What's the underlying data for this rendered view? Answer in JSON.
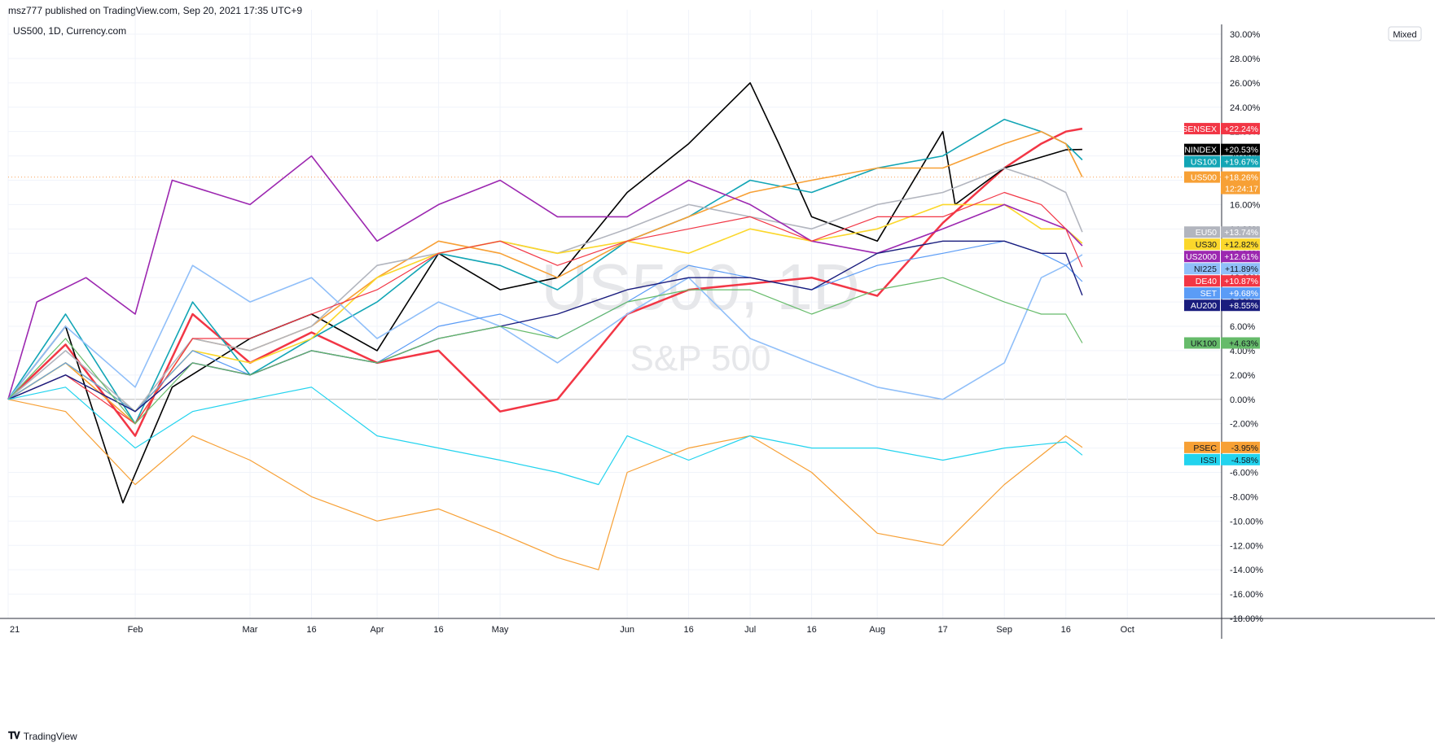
{
  "header": {
    "published": "msz777 published on TradingView.com, Sep 20, 2021 17:35 UTC+9",
    "symbol": "US500, 1D, Currency.com"
  },
  "watermark": {
    "symbol": "US500, 1D",
    "name": "S&P 500"
  },
  "scale_mode": "Mixed",
  "footer": {
    "brand": "TradingView",
    "logo": "tradingview-logo-icon"
  },
  "colors": {
    "grid": "#f0f3fa",
    "zero_line": "#bbbbbb",
    "axis_text": "#131722",
    "current_price_line": "#f7a35c"
  },
  "chart_data": {
    "type": "line",
    "unit": "%",
    "y_axis_ticks": [
      "30.00%",
      "28.00%",
      "26.00%",
      "24.00%",
      "22.00%",
      "20.00%",
      "18.00%",
      "16.00%",
      "14.00%",
      "12.00%",
      "10.00%",
      "8.00%",
      "6.00%",
      "4.00%",
      "2.00%",
      "0.00%",
      "-2.00%",
      "-4.00%",
      "-6.00%",
      "-8.00%",
      "-10.00%",
      "-12.00%",
      "-14.00%",
      "-16.00%",
      "-18.00%"
    ],
    "y_range": [
      -18,
      30
    ],
    "x_labels": [
      "21",
      "Feb",
      "Mar",
      "16",
      "Apr",
      "16",
      "May",
      "Jun",
      "16",
      "Jul",
      "16",
      "Aug",
      "17",
      "Sep",
      "16",
      "Oct"
    ],
    "x_label_positions": [
      "2021-01-01",
      "2021-02-01",
      "2021-03-01",
      "2021-03-16",
      "2021-04-01",
      "2021-04-16",
      "2021-05-01",
      "2021-06-01",
      "2021-06-16",
      "2021-07-01",
      "2021-07-16",
      "2021-08-01",
      "2021-08-17",
      "2021-09-01",
      "2021-09-16",
      "2021-10-01"
    ],
    "x_range": [
      "2021-01-01",
      "2021-10-24"
    ],
    "grid": true,
    "current_price_line": 18.26,
    "series": [
      {
        "name": "SENSEX",
        "color": "#f23645",
        "last_label": "+22.24%",
        "last": 22.24,
        "label_text_color": "#ffffff",
        "width": 2.5,
        "x": [
          "2021-01-01",
          "2021-01-15",
          "2021-02-01",
          "2021-02-15",
          "2021-03-01",
          "2021-03-16",
          "2021-04-01",
          "2021-04-16",
          "2021-05-01",
          "2021-05-15",
          "2021-06-01",
          "2021-06-16",
          "2021-07-01",
          "2021-07-16",
          "2021-08-01",
          "2021-08-17",
          "2021-09-01",
          "2021-09-10",
          "2021-09-16",
          "2021-09-20"
        ],
        "y": [
          0,
          4.5,
          -3,
          7,
          3,
          5.5,
          3,
          4,
          -1,
          0,
          7,
          9,
          9.5,
          10,
          8.5,
          14.5,
          19,
          21,
          22,
          22.24
        ]
      },
      {
        "name": "VNINDEX",
        "color": "#000000",
        "last_label": "+20.53%",
        "last": 20.53,
        "label_text_color": "#ffffff",
        "width": 1.6,
        "x": [
          "2021-01-01",
          "2021-01-15",
          "2021-01-29",
          "2021-02-10",
          "2021-03-01",
          "2021-03-16",
          "2021-04-01",
          "2021-04-16",
          "2021-05-01",
          "2021-05-15",
          "2021-06-01",
          "2021-06-16",
          "2021-07-01",
          "2021-07-08",
          "2021-07-16",
          "2021-08-01",
          "2021-08-17",
          "2021-08-20",
          "2021-09-01",
          "2021-09-16",
          "2021-09-20"
        ],
        "y": [
          0,
          6,
          -8.5,
          1,
          5,
          7,
          4,
          12,
          9,
          10,
          17,
          21,
          26,
          21,
          15,
          13,
          22,
          16,
          19,
          20.5,
          20.53
        ]
      },
      {
        "name": "US100",
        "color": "#12a5b5",
        "last_label": "+19.67%",
        "last": 19.67,
        "label_text_color": "#ffffff",
        "width": 1.6,
        "x": [
          "2021-01-01",
          "2021-01-15",
          "2021-02-01",
          "2021-02-15",
          "2021-03-01",
          "2021-03-16",
          "2021-04-01",
          "2021-04-16",
          "2021-05-01",
          "2021-05-15",
          "2021-06-01",
          "2021-06-16",
          "2021-07-01",
          "2021-07-16",
          "2021-08-01",
          "2021-08-17",
          "2021-09-01",
          "2021-09-10",
          "2021-09-16",
          "2021-09-20"
        ],
        "y": [
          0,
          7,
          -2,
          8,
          2,
          5,
          8,
          12,
          11,
          9,
          13,
          15,
          18,
          17,
          19,
          20,
          23,
          22,
          21,
          19.67
        ]
      },
      {
        "name": "US500",
        "color": "#f7a035",
        "last_label": "+18.26%",
        "last": 18.26,
        "label_text_color": "#ffffff",
        "sub_label": "12:24:17",
        "width": 1.6,
        "x": [
          "2021-01-01",
          "2021-01-15",
          "2021-02-01",
          "2021-02-15",
          "2021-03-01",
          "2021-03-16",
          "2021-04-01",
          "2021-04-16",
          "2021-05-01",
          "2021-05-15",
          "2021-06-01",
          "2021-06-16",
          "2021-07-01",
          "2021-07-16",
          "2021-08-01",
          "2021-08-17",
          "2021-09-01",
          "2021-09-10",
          "2021-09-16",
          "2021-09-20"
        ],
        "y": [
          0,
          3,
          -2,
          5,
          4,
          6,
          10,
          13,
          12,
          10,
          13,
          15,
          17,
          18,
          19,
          19,
          21,
          22,
          21,
          18.26
        ]
      },
      {
        "name": "EU50",
        "color": "#b2b5be",
        "last_label": "+13.74%",
        "last": 13.74,
        "label_text_color": "#ffffff",
        "width": 1.6,
        "x": [
          "2021-01-01",
          "2021-01-15",
          "2021-02-01",
          "2021-02-15",
          "2021-03-01",
          "2021-03-16",
          "2021-04-01",
          "2021-04-16",
          "2021-05-01",
          "2021-05-15",
          "2021-06-01",
          "2021-06-16",
          "2021-07-01",
          "2021-07-16",
          "2021-08-01",
          "2021-08-17",
          "2021-09-01",
          "2021-09-10",
          "2021-09-16",
          "2021-09-20"
        ],
        "y": [
          0,
          4,
          -1,
          5,
          4,
          6,
          11,
          12,
          13,
          12,
          14,
          16,
          15,
          14,
          16,
          17,
          19,
          18,
          17,
          13.74
        ]
      },
      {
        "name": "US30",
        "color": "#fbd72b",
        "last_label": "+12.82%",
        "last": 12.82,
        "label_text_color": "#131722",
        "width": 1.6,
        "x": [
          "2021-01-01",
          "2021-01-15",
          "2021-02-01",
          "2021-02-15",
          "2021-03-01",
          "2021-03-16",
          "2021-04-01",
          "2021-04-16",
          "2021-05-01",
          "2021-05-15",
          "2021-06-01",
          "2021-06-16",
          "2021-07-01",
          "2021-07-16",
          "2021-08-01",
          "2021-08-17",
          "2021-09-01",
          "2021-09-10",
          "2021-09-16",
          "2021-09-20"
        ],
        "y": [
          0,
          3,
          -1,
          4,
          3,
          5,
          10,
          12,
          13,
          12,
          13,
          12,
          14,
          13,
          14,
          16,
          16,
          14,
          14,
          12.82
        ]
      },
      {
        "name": "US2000",
        "color": "#9c27b0",
        "last_label": "+12.61%",
        "last": 12.61,
        "label_text_color": "#ffffff",
        "width": 1.6,
        "x": [
          "2021-01-01",
          "2021-01-08",
          "2021-01-20",
          "2021-02-01",
          "2021-02-10",
          "2021-03-01",
          "2021-03-16",
          "2021-04-01",
          "2021-04-16",
          "2021-05-01",
          "2021-05-15",
          "2021-06-01",
          "2021-06-16",
          "2021-07-01",
          "2021-07-16",
          "2021-08-01",
          "2021-08-17",
          "2021-09-01",
          "2021-09-16",
          "2021-09-20"
        ],
        "y": [
          0,
          8,
          10,
          7,
          18,
          16,
          20,
          13,
          16,
          18,
          15,
          15,
          18,
          16,
          13,
          12,
          14,
          16,
          14,
          12.61
        ]
      },
      {
        "name": "NI225",
        "color": "#90bff9",
        "last_label": "+11.89%",
        "last": 11.89,
        "label_text_color": "#131722",
        "width": 1.6,
        "x": [
          "2021-01-01",
          "2021-01-15",
          "2021-02-01",
          "2021-02-15",
          "2021-03-01",
          "2021-03-16",
          "2021-04-01",
          "2021-04-16",
          "2021-05-01",
          "2021-05-15",
          "2021-06-01",
          "2021-06-16",
          "2021-07-01",
          "2021-07-16",
          "2021-08-01",
          "2021-08-17",
          "2021-09-01",
          "2021-09-10",
          "2021-09-16",
          "2021-09-20"
        ],
        "y": [
          0,
          6,
          1,
          11,
          8,
          10,
          5,
          8,
          6,
          3,
          7,
          10,
          5,
          3,
          1,
          0,
          3,
          10,
          11,
          11.89
        ]
      },
      {
        "name": "DE40",
        "color": "#f23645",
        "last_label": "+10.87%",
        "last": 10.87,
        "label_text_color": "#ffffff",
        "width": 1.2,
        "x": [
          "2021-01-01",
          "2021-01-15",
          "2021-02-01",
          "2021-02-15",
          "2021-03-01",
          "2021-03-16",
          "2021-04-01",
          "2021-04-16",
          "2021-05-01",
          "2021-05-15",
          "2021-06-01",
          "2021-06-16",
          "2021-07-01",
          "2021-07-16",
          "2021-08-01",
          "2021-08-17",
          "2021-09-01",
          "2021-09-10",
          "2021-09-16",
          "2021-09-20"
        ],
        "y": [
          0,
          2,
          -2,
          5,
          5,
          7,
          9,
          12,
          13,
          11,
          13,
          14,
          15,
          13,
          15,
          15,
          17,
          16,
          14,
          10.87
        ]
      },
      {
        "name": "SET",
        "color": "#5b9cf6",
        "last_label": "+9.68%",
        "last": 9.68,
        "label_text_color": "#ffffff",
        "width": 1.2,
        "x": [
          "2021-01-01",
          "2021-01-15",
          "2021-02-01",
          "2021-02-15",
          "2021-03-01",
          "2021-03-16",
          "2021-04-01",
          "2021-04-16",
          "2021-05-01",
          "2021-05-15",
          "2021-06-01",
          "2021-06-16",
          "2021-07-01",
          "2021-07-16",
          "2021-08-01",
          "2021-08-17",
          "2021-09-01",
          "2021-09-10",
          "2021-09-16",
          "2021-09-20"
        ],
        "y": [
          0,
          3,
          -1,
          4,
          2,
          4,
          3,
          6,
          7,
          5,
          8,
          11,
          10,
          9,
          11,
          12,
          13,
          12,
          11,
          9.68
        ]
      },
      {
        "name": "AU200",
        "color": "#1a1d7e",
        "last_label": "+8.55%",
        "last": 8.55,
        "label_text_color": "#ffffff",
        "width": 1.4,
        "x": [
          "2021-01-01",
          "2021-01-15",
          "2021-02-01",
          "2021-02-15",
          "2021-03-01",
          "2021-03-16",
          "2021-04-01",
          "2021-04-16",
          "2021-05-01",
          "2021-05-15",
          "2021-06-01",
          "2021-06-16",
          "2021-07-01",
          "2021-07-16",
          "2021-08-01",
          "2021-08-17",
          "2021-09-01",
          "2021-09-10",
          "2021-09-16",
          "2021-09-20"
        ],
        "y": [
          0,
          2,
          -1,
          3,
          2,
          4,
          3,
          5,
          6,
          7,
          9,
          10,
          10,
          9,
          12,
          13,
          13,
          12,
          12,
          8.55
        ]
      },
      {
        "name": "UK100",
        "color": "#66bb6a",
        "last_label": "+4.63%",
        "last": 4.63,
        "label_text_color": "#131722",
        "width": 1.2,
        "x": [
          "2021-01-01",
          "2021-01-15",
          "2021-02-01",
          "2021-02-15",
          "2021-03-01",
          "2021-03-16",
          "2021-04-01",
          "2021-04-16",
          "2021-05-01",
          "2021-05-15",
          "2021-06-01",
          "2021-06-16",
          "2021-07-01",
          "2021-07-16",
          "2021-08-01",
          "2021-08-17",
          "2021-09-01",
          "2021-09-10",
          "2021-09-16",
          "2021-09-20"
        ],
        "y": [
          0,
          5,
          -2,
          3,
          2,
          4,
          3,
          5,
          6,
          5,
          8,
          9,
          9,
          7,
          9,
          10,
          8,
          7,
          7,
          4.63
        ]
      },
      {
        "name": "PSEC",
        "color": "#f7a035",
        "last_label": "-3.95%",
        "last": -3.95,
        "label_text_color": "#131722",
        "width": 1.2,
        "x": [
          "2021-01-01",
          "2021-01-15",
          "2021-02-01",
          "2021-02-15",
          "2021-03-01",
          "2021-03-16",
          "2021-04-01",
          "2021-04-16",
          "2021-05-01",
          "2021-05-15",
          "2021-05-25",
          "2021-06-01",
          "2021-06-16",
          "2021-07-01",
          "2021-07-16",
          "2021-08-01",
          "2021-08-17",
          "2021-09-01",
          "2021-09-16",
          "2021-09-20"
        ],
        "y": [
          0,
          -1,
          -7,
          -3,
          -5,
          -8,
          -10,
          -9,
          -11,
          -13,
          -14,
          -6,
          -4,
          -3,
          -6,
          -11,
          -12,
          -7,
          -3,
          -3.95
        ]
      },
      {
        "name": "ISSI",
        "color": "#22d3ee",
        "last_label": "-4.58%",
        "last": -4.58,
        "label_text_color": "#131722",
        "width": 1.2,
        "x": [
          "2021-01-01",
          "2021-01-15",
          "2021-02-01",
          "2021-02-15",
          "2021-03-01",
          "2021-03-16",
          "2021-04-01",
          "2021-04-16",
          "2021-05-01",
          "2021-05-15",
          "2021-05-25",
          "2021-06-01",
          "2021-06-16",
          "2021-07-01",
          "2021-07-16",
          "2021-08-01",
          "2021-08-17",
          "2021-09-01",
          "2021-09-16",
          "2021-09-20"
        ],
        "y": [
          0,
          1,
          -4,
          -1,
          0,
          1,
          -3,
          -4,
          -5,
          -6,
          -7,
          -3,
          -5,
          -3,
          -4,
          -4,
          -5,
          -4,
          -3.5,
          -4.58
        ]
      }
    ]
  }
}
